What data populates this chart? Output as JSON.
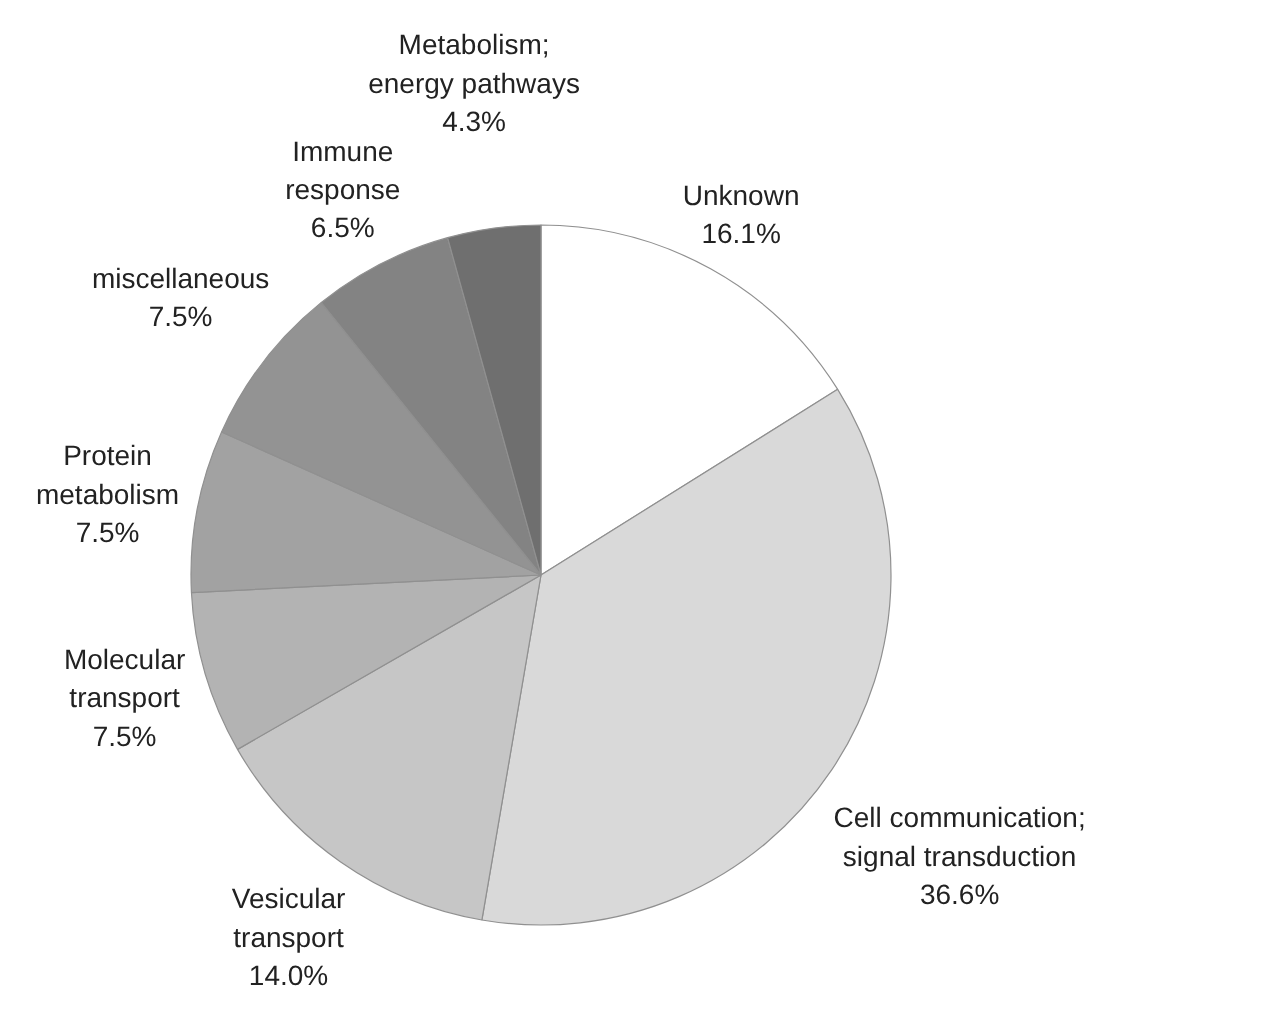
{
  "chart_data": {
    "type": "pie",
    "categories": [
      "Unknown",
      "Cell communication; signal transduction",
      "Vesicular transport",
      "Molecular transport",
      "Protein metabolism",
      "miscellaneous",
      "Immune response",
      "Metabolism; energy pathways"
    ],
    "values": [
      16.1,
      36.6,
      14.0,
      7.5,
      7.5,
      7.5,
      6.5,
      4.3
    ],
    "colors": [
      "#ffffff",
      "#d9d9d9",
      "#c6c6c6",
      "#b3b3b3",
      "#a2a2a2",
      "#939393",
      "#838383",
      "#6f6f6f"
    ],
    "value_labels": [
      "16.1%",
      "36.6%",
      "14.0%",
      "7.5%",
      "7.5%",
      "7.5%",
      "6.5%",
      "4.3%"
    ]
  }
}
